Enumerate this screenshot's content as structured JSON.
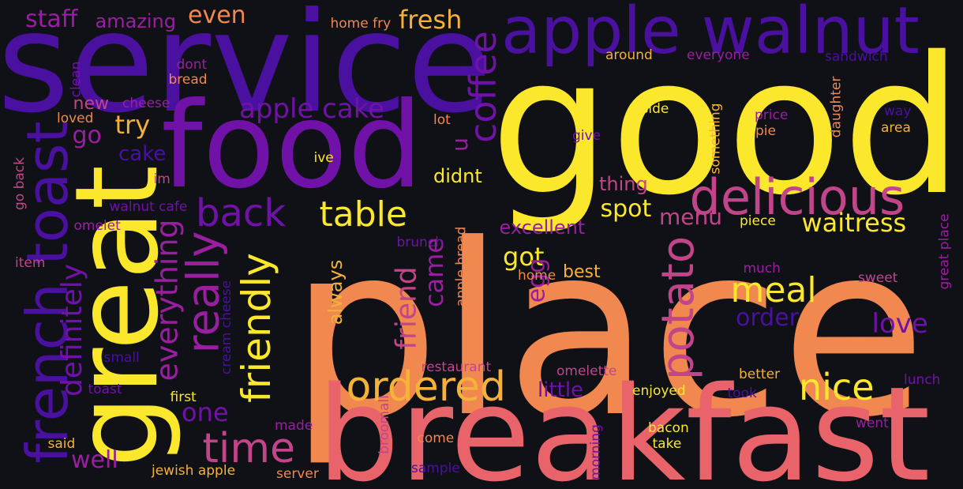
{
  "colors": {
    "background": "#0f1117",
    "palette": [
      "#4a10a0",
      "#7012a8",
      "#9a1fa0",
      "#c2458a",
      "#e8646a",
      "#f08850",
      "#f5b13a",
      "#fbe72b"
    ]
  },
  "words": [
    {
      "text": "place",
      "weight": 300,
      "color": "#f08850",
      "rotated": false
    },
    {
      "text": "good",
      "weight": 240,
      "color": "#fbe72b",
      "rotated": false
    },
    {
      "text": "service",
      "weight": 175,
      "color": "#4a10a0",
      "rotated": false
    },
    {
      "text": "breakfast",
      "weight": 165,
      "color": "#e8646a",
      "rotated": false
    },
    {
      "text": "food",
      "weight": 150,
      "color": "#7012a8",
      "rotated": false
    },
    {
      "text": "great",
      "weight": 145,
      "color": "#fbe72b",
      "rotated": true
    },
    {
      "text": "apple walnut",
      "weight": 82,
      "color": "#4a10a0",
      "rotated": false
    },
    {
      "text": "french toast",
      "weight": 72,
      "color": "#4a10a0",
      "rotated": true
    },
    {
      "text": "delicious",
      "weight": 62,
      "color": "#c2458a",
      "rotated": false
    },
    {
      "text": "potato",
      "weight": 56,
      "color": "#c2458a",
      "rotated": true
    },
    {
      "text": "really",
      "weight": 56,
      "color": "#9a1fa0",
      "rotated": true
    },
    {
      "text": "ordered",
      "weight": 52,
      "color": "#f5b13a",
      "rotated": false
    },
    {
      "text": "time",
      "weight": 52,
      "color": "#c2458a",
      "rotated": false
    },
    {
      "text": "friendly",
      "weight": 50,
      "color": "#fbe72b",
      "rotated": true
    },
    {
      "text": "back",
      "weight": 48,
      "color": "#7012a8",
      "rotated": false
    },
    {
      "text": "coffee",
      "weight": 46,
      "color": "#7012a8",
      "rotated": true
    },
    {
      "text": "nice",
      "weight": 46,
      "color": "#fbe72b",
      "rotated": false
    },
    {
      "text": "table",
      "weight": 44,
      "color": "#fbe72b",
      "rotated": false
    },
    {
      "text": "meal",
      "weight": 44,
      "color": "#fbe72b",
      "rotated": false
    },
    {
      "text": "everything",
      "weight": 38,
      "color": "#9a1fa0",
      "rotated": true
    },
    {
      "text": "definitely",
      "weight": 36,
      "color": "#7012a8",
      "rotated": true
    },
    {
      "text": "friend",
      "weight": 36,
      "color": "#c2458a",
      "rotated": true
    },
    {
      "text": "apple cake",
      "weight": 34,
      "color": "#7012a8",
      "rotated": false
    },
    {
      "text": "love",
      "weight": 34,
      "color": "#7012a8",
      "rotated": false
    },
    {
      "text": "came",
      "weight": 32,
      "color": "#9a1fa0",
      "rotated": true
    },
    {
      "text": "waitress",
      "weight": 32,
      "color": "#fbe72b",
      "rotated": false
    },
    {
      "text": "try",
      "weight": 32,
      "color": "#f5b13a",
      "rotated": false
    },
    {
      "text": "fresh",
      "weight": 32,
      "color": "#f5b13a",
      "rotated": false
    },
    {
      "text": "got",
      "weight": 32,
      "color": "#fbe72b",
      "rotated": false
    },
    {
      "text": "one",
      "weight": 32,
      "color": "#7012a8",
      "rotated": false
    },
    {
      "text": "staff",
      "weight": 30,
      "color": "#9a1fa0",
      "rotated": false
    },
    {
      "text": "even",
      "weight": 30,
      "color": "#f08850",
      "rotated": false
    },
    {
      "text": "egg",
      "weight": 30,
      "color": "#9a1fa0",
      "rotated": true
    },
    {
      "text": "well",
      "weight": 30,
      "color": "#9a1fa0",
      "rotated": false
    },
    {
      "text": "spot",
      "weight": 30,
      "color": "#fbe72b",
      "rotated": false
    },
    {
      "text": "go",
      "weight": 30,
      "color": "#9a1fa0",
      "rotated": false
    },
    {
      "text": "order",
      "weight": 30,
      "color": "#4a10a0",
      "rotated": false
    },
    {
      "text": "menu",
      "weight": 28,
      "color": "#c2458a",
      "rotated": false
    },
    {
      "text": "u",
      "weight": 28,
      "color": "#9a1fa0",
      "rotated": true
    },
    {
      "text": "little",
      "weight": 26,
      "color": "#7012a8",
      "rotated": false
    },
    {
      "text": "cake",
      "weight": 26,
      "color": "#4a10a0",
      "rotated": false
    },
    {
      "text": "always",
      "weight": 24,
      "color": "#f5b13a",
      "rotated": true
    },
    {
      "text": "excellent",
      "weight": 24,
      "color": "#9a1fa0",
      "rotated": false
    },
    {
      "text": "amazing",
      "weight": 24,
      "color": "#9a1fa0",
      "rotated": false
    },
    {
      "text": "didnt",
      "weight": 24,
      "color": "#fbe72b",
      "rotated": false
    },
    {
      "text": "thing",
      "weight": 24,
      "color": "#c2458a",
      "rotated": false
    },
    {
      "text": "best",
      "weight": 22,
      "color": "#f5b13a",
      "rotated": false
    },
    {
      "text": "new",
      "weight": 22,
      "color": "#c2458a",
      "rotated": false
    },
    {
      "text": "bacon",
      "weight": 17,
      "color": "#fbe72b",
      "rotated": false
    },
    {
      "text": "home fry",
      "weight": 17,
      "color": "#f08850",
      "rotated": false
    },
    {
      "text": "around",
      "weight": 17,
      "color": "#f5b13a",
      "rotated": false
    },
    {
      "text": "everyone",
      "weight": 17,
      "color": "#9a1fa0",
      "rotated": false
    },
    {
      "text": "sandwich",
      "weight": 17,
      "color": "#4a10a0",
      "rotated": false
    },
    {
      "text": "side",
      "weight": 17,
      "color": "#fbe72b",
      "rotated": false
    },
    {
      "text": "price",
      "weight": 17,
      "color": "#9a1fa0",
      "rotated": false
    },
    {
      "text": "pie",
      "weight": 17,
      "color": "#f08850",
      "rotated": false
    },
    {
      "text": "way",
      "weight": 17,
      "color": "#4a10a0",
      "rotated": false
    },
    {
      "text": "area",
      "weight": 17,
      "color": "#f5b13a",
      "rotated": false
    },
    {
      "text": "daughter",
      "weight": 17,
      "color": "#f08850",
      "rotated": true
    },
    {
      "text": "something",
      "weight": 17,
      "color": "#f5b13a",
      "rotated": true
    },
    {
      "text": "give",
      "weight": 17,
      "color": "#7012a8",
      "rotated": false
    },
    {
      "text": "lot",
      "weight": 17,
      "color": "#f08850",
      "rotated": false
    },
    {
      "text": "ive",
      "weight": 17,
      "color": "#fbe72b",
      "rotated": false
    },
    {
      "text": "im",
      "weight": 17,
      "color": "#c2458a",
      "rotated": false
    },
    {
      "text": "dont",
      "weight": 17,
      "color": "#9a1fa0",
      "rotated": false
    },
    {
      "text": "bread",
      "weight": 17,
      "color": "#f08850",
      "rotated": false
    },
    {
      "text": "clean",
      "weight": 17,
      "color": "#7012a8",
      "rotated": true
    },
    {
      "text": "cheese",
      "weight": 17,
      "color": "#9a1fa0",
      "rotated": false
    },
    {
      "text": "loved",
      "weight": 17,
      "color": "#f08850",
      "rotated": false
    },
    {
      "text": "go back",
      "weight": 17,
      "color": "#c2458a",
      "rotated": true
    },
    {
      "text": "walnut cafe",
      "weight": 17,
      "color": "#7012a8",
      "rotated": false
    },
    {
      "text": "omelet",
      "weight": 17,
      "color": "#9a1fa0",
      "rotated": false
    },
    {
      "text": "item",
      "weight": 17,
      "color": "#c2458a",
      "rotated": false
    },
    {
      "text": "piece",
      "weight": 17,
      "color": "#fbe72b",
      "rotated": false
    },
    {
      "text": "much",
      "weight": 17,
      "color": "#9a1fa0",
      "rotated": false
    },
    {
      "text": "sweet",
      "weight": 17,
      "color": "#c2458a",
      "rotated": false
    },
    {
      "text": "great place",
      "weight": 17,
      "color": "#9a1fa0",
      "rotated": true
    },
    {
      "text": "home",
      "weight": 17,
      "color": "#f08850",
      "rotated": false
    },
    {
      "text": "apple bread",
      "weight": 17,
      "color": "#f08850",
      "rotated": true
    },
    {
      "text": "brunch",
      "weight": 17,
      "color": "#7012a8",
      "rotated": false
    },
    {
      "text": "cream cheese",
      "weight": 17,
      "color": "#4a10a0",
      "rotated": true
    },
    {
      "text": "small",
      "weight": 17,
      "color": "#4a10a0",
      "rotated": false
    },
    {
      "text": "restaurant",
      "weight": 17,
      "color": "#c2458a",
      "rotated": false
    },
    {
      "text": "omelette",
      "weight": 17,
      "color": "#c2458a",
      "rotated": false
    },
    {
      "text": "better",
      "weight": 17,
      "color": "#f5b13a",
      "rotated": false
    },
    {
      "text": "lunch",
      "weight": 17,
      "color": "#7012a8",
      "rotated": false
    },
    {
      "text": "enjoyed",
      "weight": 17,
      "color": "#fbe72b",
      "rotated": false
    },
    {
      "text": "took",
      "weight": 17,
      "color": "#4a10a0",
      "rotated": false
    },
    {
      "text": "toast",
      "weight": 17,
      "color": "#7012a8",
      "rotated": false
    },
    {
      "text": "first",
      "weight": 17,
      "color": "#fbe72b",
      "rotated": false
    },
    {
      "text": "made",
      "weight": 17,
      "color": "#9a1fa0",
      "rotated": false
    },
    {
      "text": "broomall",
      "weight": 17,
      "color": "#c2458a",
      "rotated": true
    },
    {
      "text": "come",
      "weight": 17,
      "color": "#f08850",
      "rotated": false
    },
    {
      "text": "morning",
      "weight": 17,
      "color": "#7012a8",
      "rotated": true
    },
    {
      "text": "take",
      "weight": 17,
      "color": "#fbe72b",
      "rotated": false
    },
    {
      "text": "went",
      "weight": 17,
      "color": "#9a1fa0",
      "rotated": false
    },
    {
      "text": "said",
      "weight": 17,
      "color": "#f5b13a",
      "rotated": false
    },
    {
      "text": "jewish apple",
      "weight": 17,
      "color": "#f5b13a",
      "rotated": false
    },
    {
      "text": "server",
      "weight": 17,
      "color": "#f08850",
      "rotated": false
    },
    {
      "text": "sample",
      "weight": 17,
      "color": "#4a10a0",
      "rotated": false
    }
  ]
}
